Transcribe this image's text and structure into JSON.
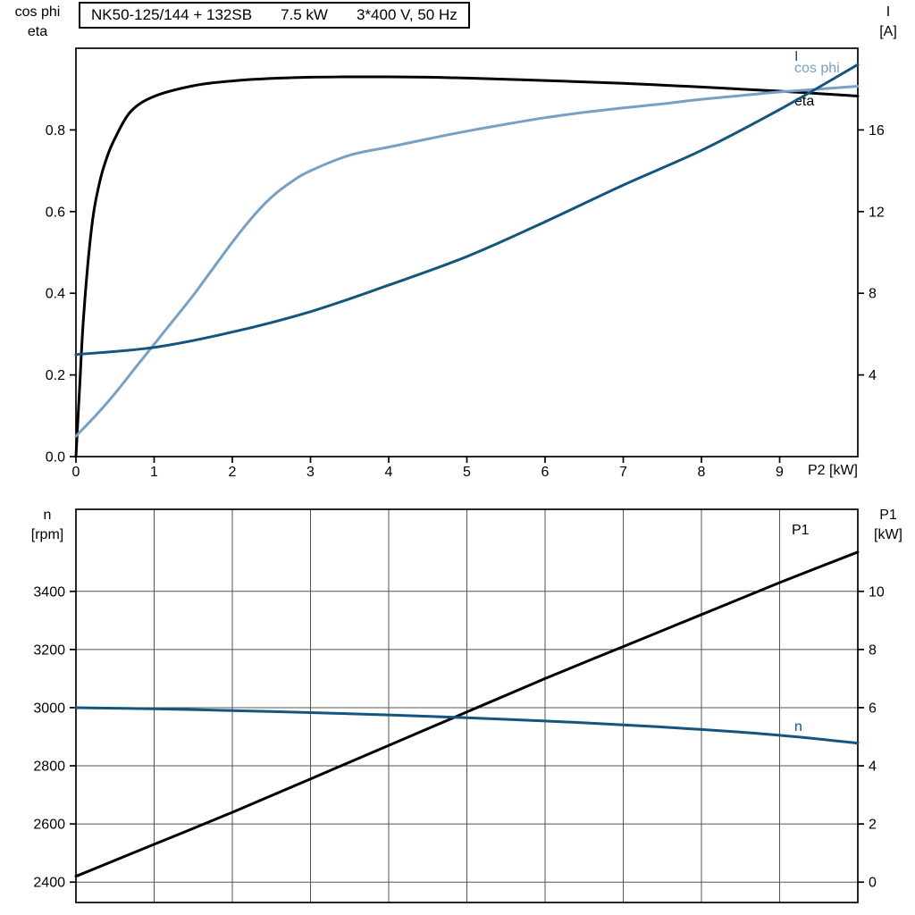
{
  "title_box": {
    "model": "NK50-125/144 + 132SB",
    "power": "7.5 kW",
    "voltage": "3*400 V, 50 Hz"
  },
  "colors": {
    "black": "#000000",
    "dark_blue": "#14557F",
    "light_blue": "#78A0C3",
    "grid": "#555555",
    "frame": "#000000"
  },
  "chart_data": [
    {
      "type": "line",
      "name": "electrical-curves",
      "grid": false,
      "x_axis": {
        "label": "P2 [kW]",
        "range": [
          0,
          10
        ],
        "tick_values": [
          0,
          1,
          2,
          3,
          4,
          5,
          6,
          7,
          8,
          9
        ],
        "tick_labels": [
          "0",
          "1",
          "2",
          "3",
          "4",
          "5",
          "6",
          "7",
          "8",
          "9"
        ]
      },
      "left_axis": {
        "header": [
          "cos phi",
          "eta"
        ],
        "range": [
          0,
          1.0
        ],
        "tick_values": [
          0.0,
          0.2,
          0.4,
          0.6,
          0.8
        ],
        "tick_labels": [
          "0.0",
          "0.2",
          "0.4",
          "0.6",
          "0.8"
        ]
      },
      "right_axis": {
        "header": [
          "I",
          "[A]"
        ],
        "range": [
          0,
          20
        ],
        "tick_values": [
          4,
          8,
          12,
          16
        ],
        "tick_labels": [
          "4",
          "8",
          "12",
          "16"
        ]
      },
      "series": [
        {
          "name": "eta",
          "label": "eta",
          "axis": "left",
          "color": "black",
          "x": [
            0,
            0.05,
            0.1,
            0.2,
            0.3,
            0.4,
            0.5,
            0.7,
            1,
            1.5,
            2,
            2.5,
            3,
            3.5,
            4,
            4.5,
            5,
            6,
            7,
            8,
            8.5,
            9,
            9.5,
            10
          ],
          "y": [
            0,
            0.18,
            0.35,
            0.56,
            0.67,
            0.735,
            0.78,
            0.845,
            0.882,
            0.908,
            0.92,
            0.926,
            0.929,
            0.93,
            0.93,
            0.929,
            0.927,
            0.921,
            0.914,
            0.905,
            0.9,
            0.895,
            0.889,
            0.883
          ]
        },
        {
          "name": "cos_phi",
          "label": "cos phi",
          "axis": "left",
          "color": "light_blue",
          "x": [
            0,
            0.25,
            0.5,
            0.75,
            1,
            1.25,
            1.5,
            1.75,
            2,
            2.25,
            2.5,
            2.75,
            3,
            3.5,
            4,
            4.5,
            5,
            5.5,
            6,
            6.5,
            7,
            7.5,
            8,
            8.5,
            9,
            9.5,
            10
          ],
          "y": [
            0.05,
            0.1,
            0.155,
            0.215,
            0.275,
            0.335,
            0.395,
            0.46,
            0.525,
            0.585,
            0.635,
            0.672,
            0.7,
            0.738,
            0.758,
            0.778,
            0.797,
            0.814,
            0.83,
            0.843,
            0.854,
            0.864,
            0.875,
            0.884,
            0.893,
            0.9,
            0.907
          ]
        },
        {
          "name": "current",
          "label": "I",
          "axis": "right",
          "color": "dark_blue",
          "x": [
            0,
            1,
            2,
            3,
            4,
            5,
            6,
            7,
            8,
            9,
            10
          ],
          "y": [
            5.0,
            5.35,
            6.1,
            7.1,
            8.4,
            9.8,
            11.5,
            13.3,
            15.0,
            17.0,
            19.2
          ]
        }
      ]
    },
    {
      "type": "line",
      "name": "speed-power-curves",
      "grid": true,
      "x_axis": {
        "label": "",
        "range": [
          0,
          10
        ],
        "tick_values": [
          1,
          2,
          3,
          4,
          5,
          6,
          7,
          8,
          9
        ],
        "tick_labels": [
          "",
          "",
          "",
          "",
          "",
          "",
          "",
          "",
          ""
        ]
      },
      "left_axis": {
        "header": [
          "n",
          "[rpm]"
        ],
        "range": [
          2330,
          3682
        ],
        "tick_values": [
          2400,
          2600,
          2800,
          3000,
          3200,
          3400
        ],
        "tick_labels": [
          "2400",
          "2600",
          "2800",
          "3000",
          "3200",
          "3400"
        ]
      },
      "right_axis": {
        "header": [
          "P1",
          "[kW]"
        ],
        "range": [
          -0.7,
          12.82
        ],
        "tick_values": [
          0,
          2,
          4,
          6,
          8,
          10
        ],
        "tick_labels": [
          "0",
          "2",
          "4",
          "6",
          "8",
          "10"
        ]
      },
      "series": [
        {
          "name": "p1",
          "label": "P1",
          "axis": "right",
          "color": "black",
          "x": [
            0,
            1,
            2,
            3,
            4,
            5,
            6,
            7,
            8,
            9,
            10
          ],
          "y": [
            0.2,
            1.3,
            2.4,
            3.55,
            4.7,
            5.85,
            7.0,
            8.1,
            9.2,
            10.3,
            11.35
          ]
        },
        {
          "name": "n",
          "label": "n",
          "axis": "left",
          "color": "dark_blue",
          "x": [
            0,
            1,
            2,
            3,
            4,
            5,
            6,
            7,
            8,
            9,
            10
          ],
          "y": [
            3000,
            2996,
            2990,
            2983,
            2975,
            2965,
            2954,
            2941,
            2925,
            2905,
            2878
          ]
        }
      ]
    }
  ]
}
